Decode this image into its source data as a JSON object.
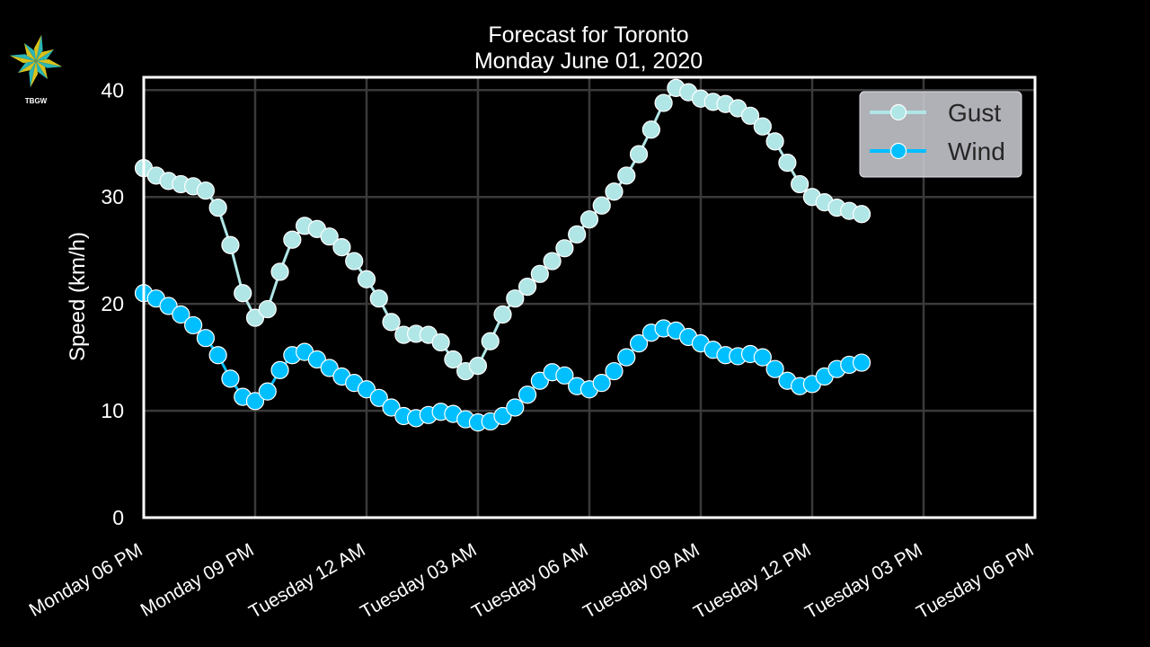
{
  "logo": {
    "icon": "compass-star-icon",
    "text": "TBGW"
  },
  "title": {
    "line1": "Forecast for Toronto",
    "line2": "Monday June 01, 2020"
  },
  "colors": {
    "background": "#000000",
    "gust": "#b0e6e6",
    "wind": "#00bfff",
    "grid": "#3a3a3a",
    "frame": "#ffffff",
    "legend_bg": "#c8c8d0"
  },
  "chart_data": {
    "type": "line",
    "title": "Forecast for Toronto\nMonday June 01, 2020",
    "xlabel": "",
    "ylabel": "Speed (km/h)",
    "ylim": [
      0,
      41.2
    ],
    "yticks": [
      0,
      10,
      20,
      30,
      40
    ],
    "xlim_hours": [
      0,
      24
    ],
    "xticks": [
      {
        "h": 0,
        "label": "Monday 06 PM"
      },
      {
        "h": 3,
        "label": "Monday 09 PM"
      },
      {
        "h": 6,
        "label": "Tuesday 12 AM"
      },
      {
        "h": 9,
        "label": "Tuesday 03 AM"
      },
      {
        "h": 12,
        "label": "Tuesday 06 AM"
      },
      {
        "h": 15,
        "label": "Tuesday 09 AM"
      },
      {
        "h": 18,
        "label": "Tuesday 12 PM"
      },
      {
        "h": 21,
        "label": "Tuesday 03 PM"
      },
      {
        "h": 24,
        "label": "Tuesday 06 PM"
      }
    ],
    "grid": true,
    "legend_position": "upper right",
    "x_hours_step": 0.3333,
    "series": [
      {
        "name": "Gust",
        "color": "#b0e6e6",
        "values": [
          32.7,
          32.0,
          31.5,
          31.2,
          31.0,
          30.6,
          29.0,
          25.5,
          21.0,
          18.7,
          19.5,
          23.0,
          26.0,
          27.3,
          27.0,
          26.3,
          25.3,
          24.0,
          22.3,
          20.5,
          18.3,
          17.1,
          17.2,
          17.1,
          16.4,
          14.8,
          13.7,
          14.2,
          16.5,
          19.0,
          20.5,
          21.6,
          22.8,
          24.0,
          25.2,
          26.5,
          27.9,
          29.2,
          30.5,
          32.0,
          34.0,
          36.3,
          38.8,
          40.2,
          39.8,
          39.2,
          38.9,
          38.7,
          38.3,
          37.6,
          36.6,
          35.2,
          33.2,
          31.2,
          30.0,
          29.5,
          29.0,
          28.7,
          28.4
        ]
      },
      {
        "name": "Wind",
        "color": "#00bfff",
        "values": [
          21.0,
          20.5,
          19.8,
          19.0,
          18.0,
          16.8,
          15.2,
          13.0,
          11.3,
          10.9,
          11.8,
          13.8,
          15.2,
          15.5,
          14.8,
          14.0,
          13.2,
          12.6,
          12.0,
          11.2,
          10.3,
          9.5,
          9.3,
          9.6,
          9.9,
          9.7,
          9.2,
          8.9,
          9.0,
          9.5,
          10.3,
          11.5,
          12.8,
          13.6,
          13.3,
          12.3,
          12.0,
          12.6,
          13.7,
          15.0,
          16.3,
          17.3,
          17.7,
          17.5,
          16.9,
          16.3,
          15.7,
          15.2,
          15.1,
          15.3,
          15.0,
          13.9,
          12.8,
          12.3,
          12.5,
          13.2,
          13.9,
          14.3,
          14.5
        ]
      }
    ]
  },
  "legend": {
    "items": [
      {
        "label": "Gust"
      },
      {
        "label": "Wind"
      }
    ]
  }
}
